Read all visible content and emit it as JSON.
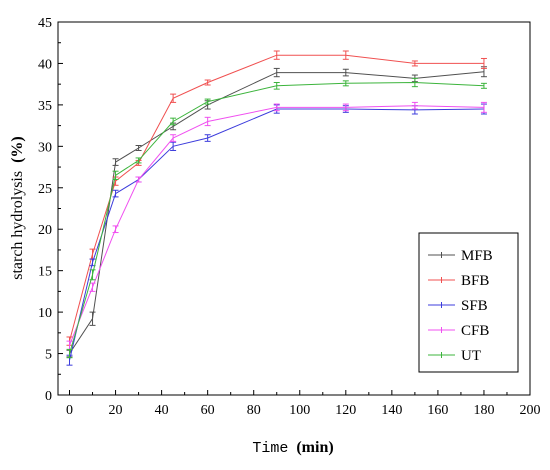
{
  "chart_data": {
    "type": "line",
    "title": "",
    "xlabel": {
      "main": "Time",
      "unit": "(min)"
    },
    "ylabel": {
      "main": "starch hydrolysis",
      "unit": "(%)"
    },
    "xlim": [
      -5,
      200
    ],
    "ylim": [
      0,
      45
    ],
    "x_ticks": [
      "0",
      "20",
      "40",
      "60",
      "80",
      "100",
      "120",
      "140",
      "160",
      "180",
      "200"
    ],
    "y_ticks": [
      "0",
      "5",
      "10",
      "15",
      "20",
      "25",
      "30",
      "35",
      "40",
      "45"
    ],
    "grid": false,
    "legend_position": "bottom-right",
    "x": [
      0,
      10,
      20,
      30,
      45,
      60,
      90,
      120,
      150,
      180
    ],
    "series": [
      {
        "name": "MFB",
        "color": "#505050",
        "values": [
          5.0,
          9.2,
          28.1,
          29.8,
          32.4,
          35.0,
          38.9,
          38.9,
          38.2,
          39.0
        ],
        "errors": [
          0.4,
          0.8,
          0.4,
          0.3,
          0.4,
          0.5,
          0.5,
          0.4,
          0.4,
          0.6
        ]
      },
      {
        "name": "BFB",
        "color": "#f05050",
        "values": [
          6.5,
          17.0,
          25.8,
          28.0,
          35.8,
          37.7,
          41.0,
          41.0,
          40.0,
          40.0
        ],
        "errors": [
          0.5,
          0.6,
          0.5,
          0.3,
          0.5,
          0.3,
          0.5,
          0.5,
          0.3,
          0.6
        ]
      },
      {
        "name": "SFB",
        "color": "#3c3cdc",
        "values": [
          4.2,
          16.0,
          24.3,
          26.0,
          30.0,
          31.0,
          34.5,
          34.5,
          34.4,
          34.5
        ],
        "errors": [
          0.6,
          0.4,
          0.4,
          0.3,
          0.5,
          0.4,
          0.5,
          0.4,
          0.5,
          0.6
        ]
      },
      {
        "name": "CFB",
        "color": "#f050f0",
        "values": [
          6.0,
          13.0,
          20.0,
          26.0,
          31.0,
          33.0,
          34.7,
          34.7,
          34.9,
          34.7
        ],
        "errors": [
          0.5,
          0.5,
          0.4,
          0.3,
          0.4,
          0.5,
          0.4,
          0.4,
          0.4,
          0.6
        ]
      },
      {
        "name": "UT",
        "color": "#3cb43c",
        "values": [
          5.0,
          14.5,
          26.5,
          28.3,
          33.0,
          35.4,
          37.3,
          37.6,
          37.7,
          37.3
        ],
        "errors": [
          0.5,
          0.6,
          0.5,
          0.3,
          0.4,
          0.3,
          0.4,
          0.3,
          0.5,
          0.3
        ]
      }
    ]
  }
}
